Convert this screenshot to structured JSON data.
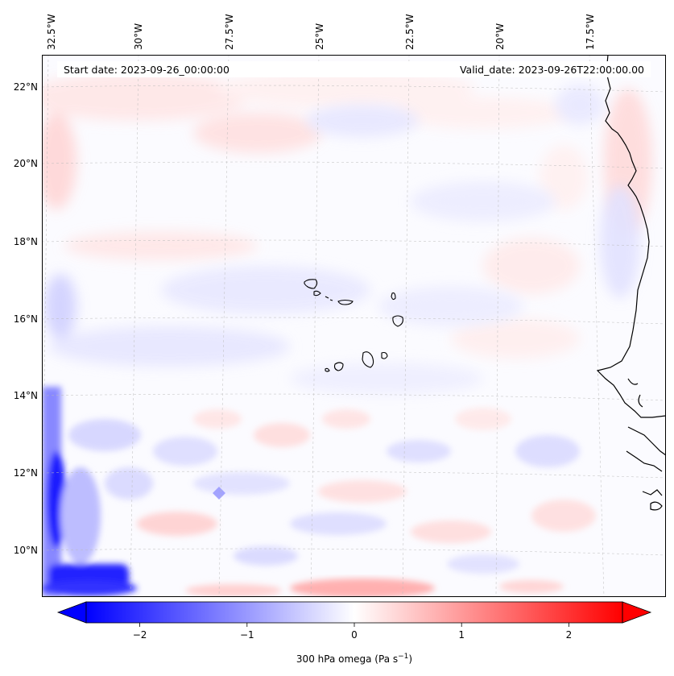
{
  "header": {
    "start_date": "Start date: 2023-09-26_00:00:00",
    "valid_date": "Valid_date: 2023-09-26T22:00:00.00"
  },
  "map": {
    "lon_labels": [
      "32.5°W",
      "30°W",
      "27.5°W",
      "25°W",
      "22.5°W",
      "20°W",
      "17.5°W"
    ],
    "lat_labels": [
      "22°N",
      "20°N",
      "18°N",
      "16°N",
      "14°N",
      "12°N",
      "10°N"
    ],
    "gridlines": "dashed",
    "colors": {
      "negative": "#0000ff",
      "zero": "#ffffff",
      "positive": "#ff0000",
      "coast": "#000000"
    }
  },
  "colorbar": {
    "label_main": "300 hPa omega (Pa s",
    "label_exp": "−1",
    "label_close": ")",
    "ticks": [
      "−2",
      "−1",
      "0",
      "1",
      "2"
    ],
    "tick_values": [
      -2,
      -1,
      0,
      1,
      2
    ],
    "range": [
      -2.5,
      2.5
    ],
    "extend": "both"
  }
}
